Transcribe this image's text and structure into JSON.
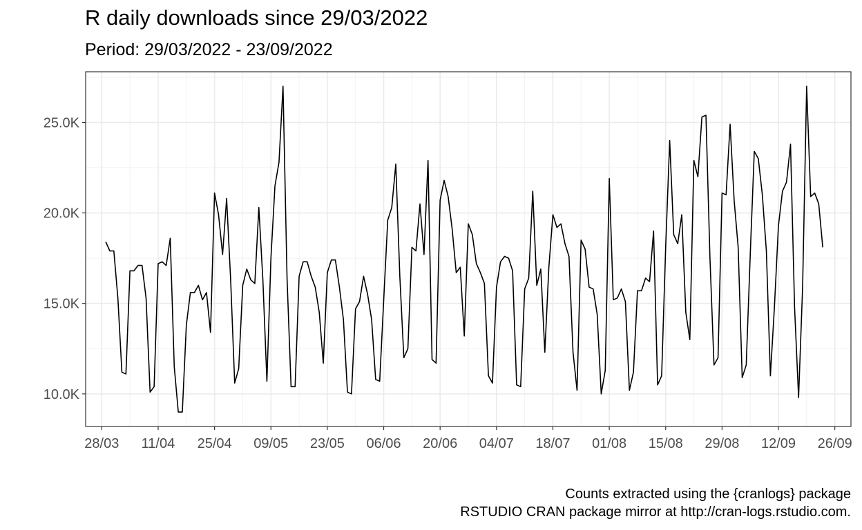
{
  "chart_data": {
    "type": "line",
    "title": "R daily downloads since 29/03/2022",
    "subtitle": "Period: 29/03/2022 - 23/09/2022",
    "caption": [
      "Counts extracted using the {cranlogs} package",
      "RSTUDIO CRAN package mirror at http://cran-logs.rstudio.com."
    ],
    "xlabel": "",
    "ylabel": "",
    "xlim": [
      "2022-03-24",
      "2022-09-30"
    ],
    "ylim": [
      8200,
      27800
    ],
    "x_ticks": [
      {
        "date": "2022-03-28",
        "label": "28/03"
      },
      {
        "date": "2022-04-11",
        "label": "11/04"
      },
      {
        "date": "2022-04-25",
        "label": "25/04"
      },
      {
        "date": "2022-05-09",
        "label": "09/05"
      },
      {
        "date": "2022-05-23",
        "label": "23/05"
      },
      {
        "date": "2022-06-06",
        "label": "06/06"
      },
      {
        "date": "2022-06-20",
        "label": "20/06"
      },
      {
        "date": "2022-07-04",
        "label": "04/07"
      },
      {
        "date": "2022-07-18",
        "label": "18/07"
      },
      {
        "date": "2022-08-01",
        "label": "01/08"
      },
      {
        "date": "2022-08-15",
        "label": "15/08"
      },
      {
        "date": "2022-08-29",
        "label": "29/08"
      },
      {
        "date": "2022-09-12",
        "label": "12/09"
      },
      {
        "date": "2022-09-26",
        "label": "26/09"
      }
    ],
    "y_ticks": [
      {
        "value": 10000,
        "label": "10.0K"
      },
      {
        "value": 15000,
        "label": "15.0K"
      },
      {
        "value": 20000,
        "label": "20.0K"
      },
      {
        "value": 25000,
        "label": "25.0K"
      }
    ],
    "grid": true,
    "line_color": "#000000",
    "series": [
      {
        "x": [
          "2022-03-29",
          "2022-03-30",
          "2022-03-31",
          "2022-04-01",
          "2022-04-02",
          "2022-04-03",
          "2022-04-04",
          "2022-04-05",
          "2022-04-06",
          "2022-04-07",
          "2022-04-08",
          "2022-04-09",
          "2022-04-10",
          "2022-04-11",
          "2022-04-12",
          "2022-04-13",
          "2022-04-14",
          "2022-04-15",
          "2022-04-16",
          "2022-04-17",
          "2022-04-18",
          "2022-04-19",
          "2022-04-20",
          "2022-04-21",
          "2022-04-22",
          "2022-04-23",
          "2022-04-24",
          "2022-04-25",
          "2022-04-26",
          "2022-04-27",
          "2022-04-28",
          "2022-04-29",
          "2022-04-30",
          "2022-05-01",
          "2022-05-02",
          "2022-05-03",
          "2022-05-04",
          "2022-05-05",
          "2022-05-06",
          "2022-05-07",
          "2022-05-08",
          "2022-05-09",
          "2022-05-10",
          "2022-05-11",
          "2022-05-12",
          "2022-05-13",
          "2022-05-14",
          "2022-05-15",
          "2022-05-16",
          "2022-05-17",
          "2022-05-18",
          "2022-05-19",
          "2022-05-20",
          "2022-05-21",
          "2022-05-22",
          "2022-05-23",
          "2022-05-24",
          "2022-05-25",
          "2022-05-26",
          "2022-05-27",
          "2022-05-28",
          "2022-05-29",
          "2022-05-30",
          "2022-05-31",
          "2022-06-01",
          "2022-06-02",
          "2022-06-03",
          "2022-06-04",
          "2022-06-05",
          "2022-06-06",
          "2022-06-07",
          "2022-06-08",
          "2022-06-09",
          "2022-06-10",
          "2022-06-11",
          "2022-06-12",
          "2022-06-13",
          "2022-06-14",
          "2022-06-15",
          "2022-06-16",
          "2022-06-17",
          "2022-06-18",
          "2022-06-19",
          "2022-06-20",
          "2022-06-21",
          "2022-06-22",
          "2022-06-23",
          "2022-06-24",
          "2022-06-25",
          "2022-06-26",
          "2022-06-27",
          "2022-06-28",
          "2022-06-29",
          "2022-06-30",
          "2022-07-01",
          "2022-07-02",
          "2022-07-03",
          "2022-07-04",
          "2022-07-05",
          "2022-07-06",
          "2022-07-07",
          "2022-07-08",
          "2022-07-09",
          "2022-07-10",
          "2022-07-11",
          "2022-07-12",
          "2022-07-13",
          "2022-07-14",
          "2022-07-15",
          "2022-07-16",
          "2022-07-17",
          "2022-07-18",
          "2022-07-19",
          "2022-07-20",
          "2022-07-21",
          "2022-07-22",
          "2022-07-23",
          "2022-07-24",
          "2022-07-25",
          "2022-07-26",
          "2022-07-27",
          "2022-07-28",
          "2022-07-29",
          "2022-07-30",
          "2022-07-31",
          "2022-08-01",
          "2022-08-02",
          "2022-08-03",
          "2022-08-04",
          "2022-08-05",
          "2022-08-06",
          "2022-08-07",
          "2022-08-08",
          "2022-08-09",
          "2022-08-10",
          "2022-08-11",
          "2022-08-12",
          "2022-08-13",
          "2022-08-14",
          "2022-08-15",
          "2022-08-16",
          "2022-08-17",
          "2022-08-18",
          "2022-08-19",
          "2022-08-20",
          "2022-08-21",
          "2022-08-22",
          "2022-08-23",
          "2022-08-24",
          "2022-08-25",
          "2022-08-26",
          "2022-08-27",
          "2022-08-28",
          "2022-08-29",
          "2022-08-30",
          "2022-08-31",
          "2022-09-01",
          "2022-09-02",
          "2022-09-03",
          "2022-09-04",
          "2022-09-05",
          "2022-09-06",
          "2022-09-07",
          "2022-09-08",
          "2022-09-09",
          "2022-09-10",
          "2022-09-11",
          "2022-09-12",
          "2022-09-13",
          "2022-09-14",
          "2022-09-15",
          "2022-09-16",
          "2022-09-17",
          "2022-09-18",
          "2022-09-19",
          "2022-09-20",
          "2022-09-21",
          "2022-09-22",
          "2022-09-23"
        ],
        "values": [
          18400,
          17900,
          17900,
          15300,
          11200,
          11100,
          16800,
          16800,
          17100,
          17100,
          15300,
          10100,
          10400,
          17200,
          17300,
          17100,
          18600,
          11500,
          9000,
          9000,
          13800,
          15600,
          15600,
          16000,
          15200,
          15600,
          13400,
          21100,
          19900,
          17700,
          20800,
          16300,
          10600,
          11400,
          16000,
          16900,
          16300,
          16100,
          20300,
          16300,
          10700,
          17500,
          21500,
          22800,
          27000,
          16400,
          10400,
          10400,
          16500,
          17300,
          17300,
          16500,
          15900,
          14500,
          11700,
          16700,
          17400,
          17400,
          15900,
          14100,
          10100,
          10000,
          14700,
          15100,
          16500,
          15500,
          14100,
          10800,
          10700,
          15200,
          19600,
          20300,
          22700,
          16500,
          12000,
          12500,
          18100,
          17900,
          20500,
          17700,
          22900,
          11900,
          11700,
          20700,
          21800,
          20900,
          19100,
          16700,
          17000,
          13200,
          19400,
          18800,
          17200,
          16700,
          16100,
          11000,
          10600,
          15900,
          17300,
          17600,
          17500,
          16800,
          10500,
          10400,
          15800,
          16400,
          21200,
          16000,
          16900,
          12300,
          17000,
          19900,
          19200,
          19400,
          18300,
          17600,
          12300,
          10200,
          18500,
          18000,
          15900,
          15800,
          14400,
          10000,
          11300,
          21900,
          15200,
          15300,
          15800,
          15100,
          10200,
          11200,
          15700,
          15700,
          16400,
          16200,
          19000,
          10500,
          11000,
          18100,
          24000,
          18800,
          18300,
          19900,
          14500,
          13000,
          22900,
          22000,
          25300,
          25400,
          17500,
          11600,
          12000,
          21100,
          21000,
          24900,
          20700,
          18100,
          10900,
          11600,
          17700,
          23400,
          23000,
          21000,
          17900,
          11000,
          14800,
          19300,
          21200,
          21700,
          23800,
          14800,
          9800,
          15900,
          27000,
          20900,
          21100,
          20500,
          18100
        ]
      }
    ]
  }
}
